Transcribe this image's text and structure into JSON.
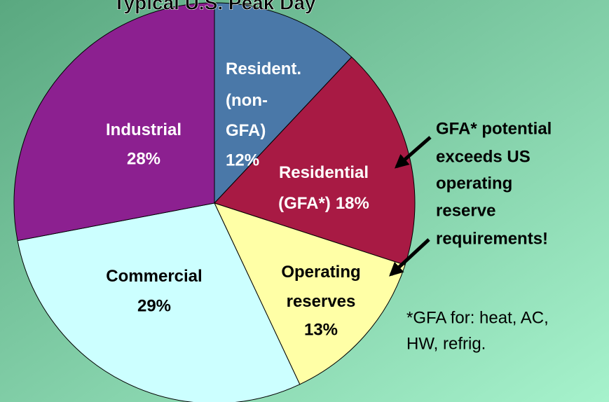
{
  "chart_data": {
    "type": "pie",
    "title": "Typical U.S. Peak Day",
    "categories": [
      [
        "Resident.",
        "(non-",
        "GFA)"
      ],
      [
        "Residential",
        "(GFA*)"
      ],
      [
        "Operating",
        "reserves"
      ],
      [
        "Commercial"
      ],
      [
        "Industrial"
      ]
    ],
    "values": [
      12,
      18,
      13,
      29,
      28
    ],
    "value_labels": [
      "12%",
      "18%",
      "13%",
      "29%",
      "28%"
    ],
    "colors": [
      "#4a78a8",
      "#a81a44",
      "#ffffa6",
      "#ccffff",
      "#8c2090"
    ],
    "annotation": [
      "GFA* potential",
      "exceeds US",
      "operating",
      "reserve",
      "requirements!"
    ],
    "footnote": [
      "*GFA for: heat, AC,",
      "HW, refrig."
    ]
  }
}
